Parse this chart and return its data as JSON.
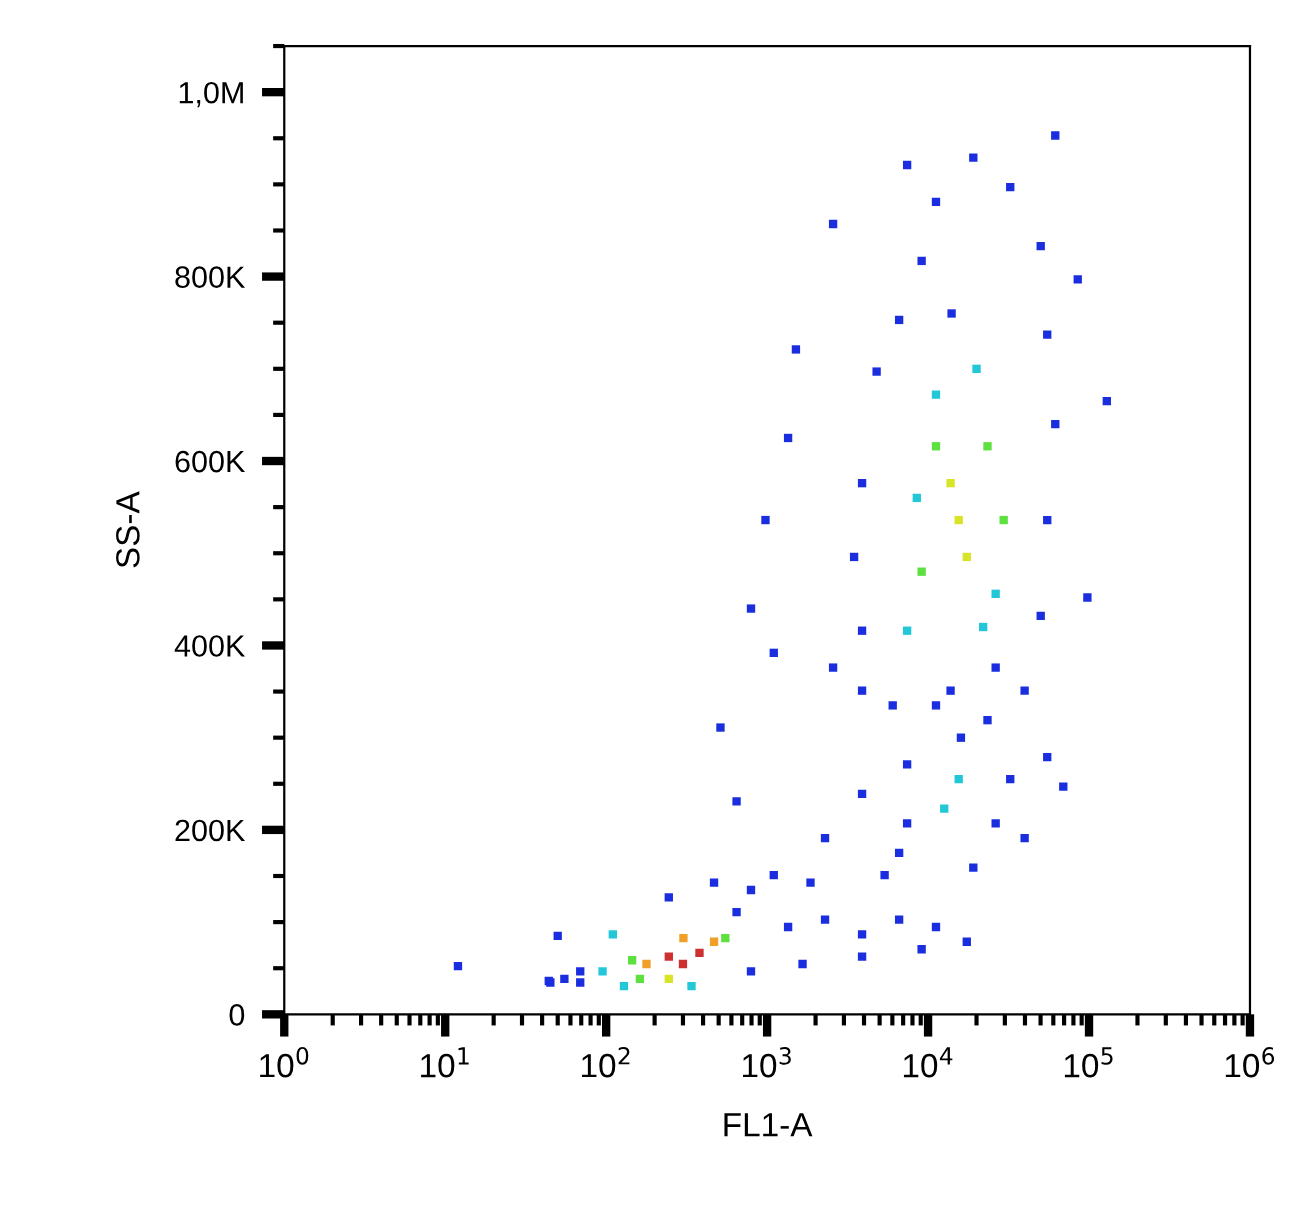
{
  "chart_data": {
    "type": "scatter",
    "xlabel": "FL1-A",
    "ylabel": "SS-A",
    "log": "x",
    "marker": "square",
    "grid": false,
    "xlim": [
      1,
      1000000
    ],
    "ylim": [
      0,
      1050000
    ],
    "xticks": [
      {
        "value": 1,
        "label": "10$^{0}$"
      },
      {
        "value": 10,
        "label": "10$^{1}$"
      },
      {
        "value": 100,
        "label": "10$^{2}$"
      },
      {
        "value": 1000,
        "label": "10$^{3}$"
      },
      {
        "value": 10000,
        "label": "10$^{4}$"
      },
      {
        "value": 100000,
        "label": "10$^{5}$"
      },
      {
        "value": 1000000,
        "label": "10$^{6}$"
      }
    ],
    "yticks": [
      0,
      {
        "value": 200000,
        "label": "200K"
      },
      {
        "value": 400000,
        "label": "400K"
      },
      {
        "value": 600000,
        "label": "600K"
      },
      {
        "value": 800000,
        "label": "800K"
      },
      {
        "value": 1000000,
        "label": "1,0M"
      }
    ],
    "series": [
      {
        "color": "#1a2ee0",
        "values": [
          46500,
          34500,
          38500,
          34500,
          126800,
          142900,
          110800,
          46500,
          52200,
          36100,
          85000,
          94700,
          102700,
          86700,
          102700,
          94700,
          54600,
          62600,
          70600,
          150900,
          191000,
          239000,
          231000,
          78700,
          134800,
          142900,
          175000,
          207000,
          271000,
          255000,
          159000,
          191000,
          207000,
          335000,
          319000,
          351000,
          279000,
          151000,
          576000,
          496000,
          697000,
          753000,
          817000,
          881000,
          929000,
          897000,
          833000,
          737000,
          640000,
          536000,
          432000,
          351000,
          416000,
          376000,
          335000,
          351000,
          921000,
          376000,
          857000,
          665000,
          452000,
          536000,
          440000,
          721000,
          392000,
          311000,
          625000,
          797000,
          247000,
          953000,
          760000,
          300000
        ],
        "x": [
          69,
          69,
          55,
          45,
          245,
          468,
          646,
          794,
          12,
          44,
          50,
          1350,
          2290,
          3890,
          6610,
          11200,
          1660,
          3890,
          9120,
          1100,
          2290,
          3890,
          646,
          17400,
          794,
          1860,
          6610,
          26300,
          7410,
          32400,
          19100,
          39800,
          7410,
          11200,
          23400,
          3890,
          55000,
          5370,
          3890,
          3470,
          4790,
          6610,
          9120,
          11200,
          19100,
          32400,
          50100,
          55000,
          61700,
          55000,
          50100,
          39800,
          3890,
          2570,
          6030,
          13800,
          7410,
          26300,
          2570,
          129000,
          97700,
          977,
          794,
          1510,
          1100,
          513,
          1350,
          85100,
          69200,
          61700,
          14000,
          16000
        ]
      },
      {
        "color": "#22c8d8",
        "values": [
          46500,
          86700,
          30500,
          30500,
          223000,
          255000,
          456000,
          672000,
          416000,
          560000,
          700000,
          420000
        ],
        "x": [
          95,
          110,
          339,
          129,
          12600,
          15500,
          26300,
          11200,
          7410,
          8510,
          20000,
          22000
        ]
      },
      {
        "color": "#5ee040",
        "values": [
          58600,
          82700,
          38500,
          616000,
          616000,
          480000,
          536000
        ],
        "x": [
          145,
          550,
          162,
          11200,
          23400,
          9120,
          29500
        ]
      },
      {
        "color": "#d8e428",
        "values": [
          38500,
          536000,
          576000,
          496000
        ],
        "x": [
          245,
          15500,
          13800,
          17400
        ]
      },
      {
        "color": "#f0a028",
        "values": [
          54600,
          78700,
          82700
        ],
        "x": [
          178,
          468,
          302
        ]
      },
      {
        "color": "#cc3030",
        "values": [
          62600,
          66600,
          54600
        ],
        "x": [
          245,
          380,
          300
        ]
      }
    ]
  }
}
